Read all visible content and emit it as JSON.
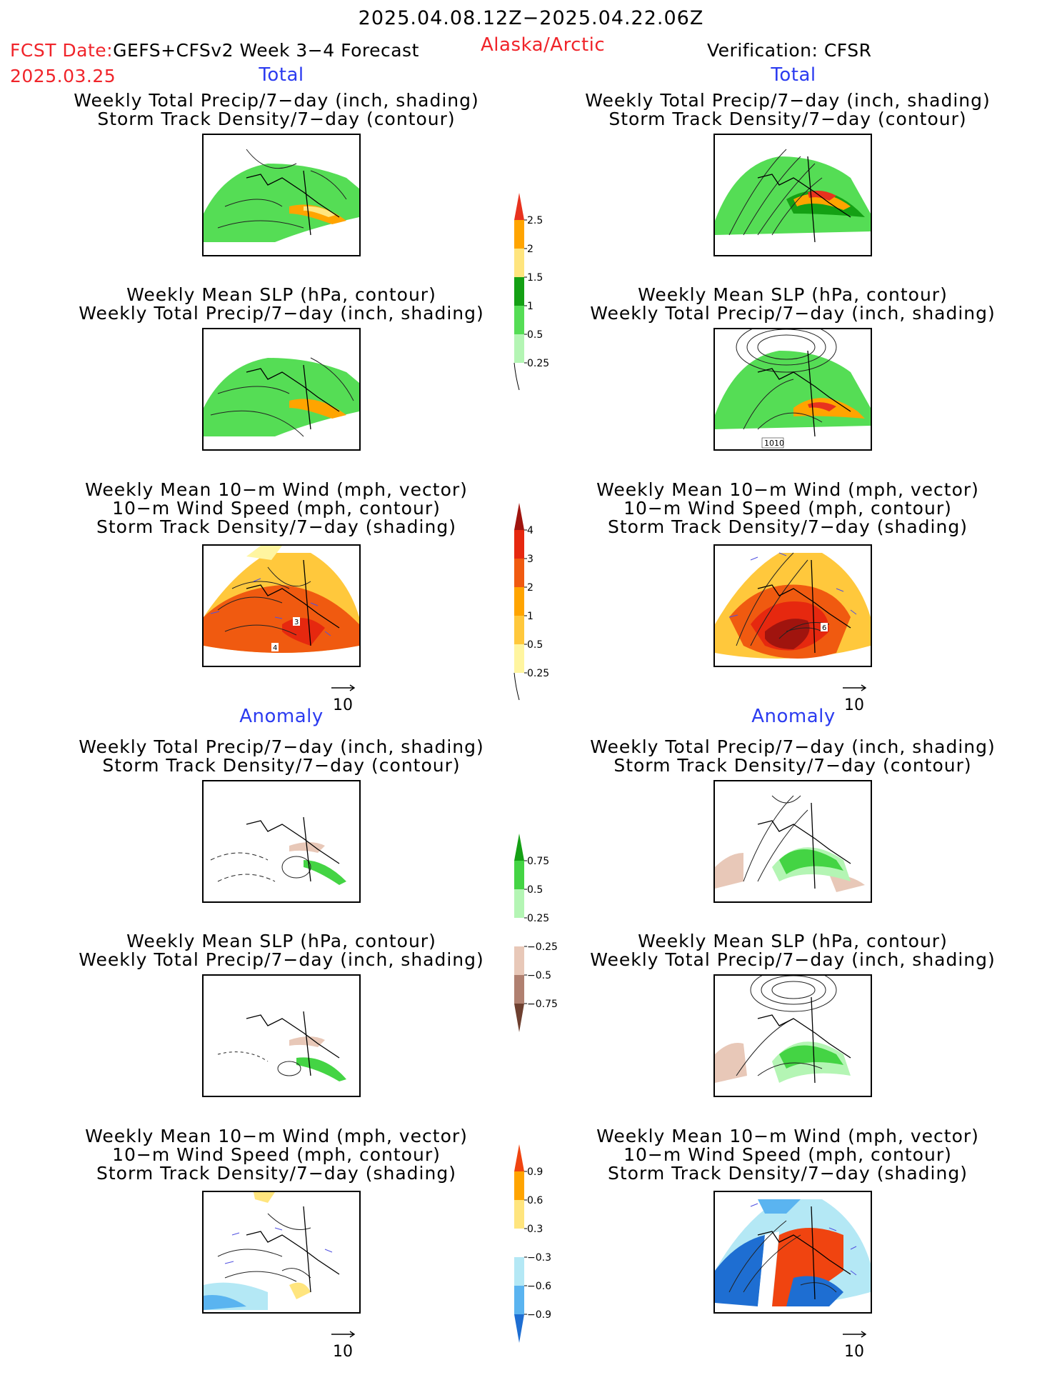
{
  "header": {
    "date_range": "2025.04.08.12Z−2025.04.22.06Z",
    "fcst_label": "FCST Date:",
    "model": "GEFS+CFSv2 Week 3−4 Forecast",
    "fcst_date": "2025.03.25",
    "region": "Alaska/Arctic",
    "verification": "Verification: CFSR"
  },
  "sections": {
    "total": "Total",
    "anomaly": "Anomaly"
  },
  "titles": {
    "precip_storm": [
      "Weekly Total Precip/7−day (inch, shading)",
      "Storm Track Density/7−day (contour)"
    ],
    "slp_precip": [
      "Weekly Mean SLP (hPa, contour)",
      "Weekly Total Precip/7−day (inch, shading)"
    ],
    "wind": [
      "Weekly Mean 10−m Wind (mph, vector)",
      "10−m Wind Speed (mph, contour)",
      "Storm Track Density/7−day (shading)"
    ]
  },
  "vector_ref": "10",
  "contour_labels": {
    "slp_verif": "1010",
    "wind_fcst_a": "3",
    "wind_fcst_b": "4",
    "wind_verif": "6"
  },
  "colorbars": {
    "precip_total": {
      "labels": [
        "2.5",
        "2",
        "1.5",
        "1",
        "0.5",
        "0.25"
      ],
      "colors": [
        "#e8321e",
        "#ffa400",
        "#ffe57e",
        "#14a014",
        "#55dd55",
        "#b4f5b4"
      ]
    },
    "storm_total": {
      "labels": [
        "4",
        "3",
        "2",
        "1",
        "0.5",
        "0.25"
      ],
      "colors": [
        "#a0140e",
        "#e6280f",
        "#f05a10",
        "#ffa400",
        "#ffc83c",
        "#fff5a0"
      ]
    },
    "precip_anom": {
      "labels": [
        "0.75",
        "0.5",
        "0.25",
        "−0.25",
        "−0.5",
        "−0.75"
      ],
      "colors": [
        "#14a014",
        "#44d444",
        "#b4f5b4",
        "#ffffff",
        "#e8c8b8",
        "#b08070",
        "#6e4030"
      ]
    },
    "storm_anom": {
      "labels": [
        "0.9",
        "0.6",
        "0.3",
        "−0.3",
        "−0.6",
        "−0.9"
      ],
      "colors": [
        "#f04410",
        "#ffa400",
        "#ffe57e",
        "#ffffff",
        "#b4e8f5",
        "#5ab4f0",
        "#1e6ed2"
      ]
    }
  }
}
